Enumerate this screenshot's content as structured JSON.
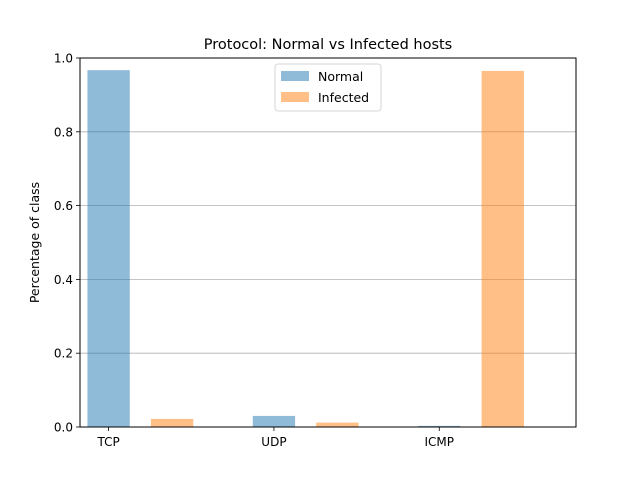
{
  "chart_data": {
    "type": "bar",
    "title": "Protocol: Normal vs Infected hosts",
    "xlabel": "",
    "ylabel": "Percentage of class",
    "categories": [
      "TCP",
      "UDP",
      "ICMP"
    ],
    "series": [
      {
        "name": "Normal",
        "values": [
          0.967,
          0.03,
          0.003
        ],
        "color": "#1f77b4",
        "alpha": 0.5
      },
      {
        "name": "Infected",
        "values": [
          0.022,
          0.012,
          0.965
        ],
        "color": "#ff7f0e",
        "alpha": 0.5
      }
    ],
    "ylim": [
      0,
      1.0
    ],
    "yticks": [
      "0.0",
      "0.2",
      "0.4",
      "0.6",
      "0.8",
      "1.0"
    ],
    "grid": "y-axis",
    "legend_position": "top-center"
  }
}
